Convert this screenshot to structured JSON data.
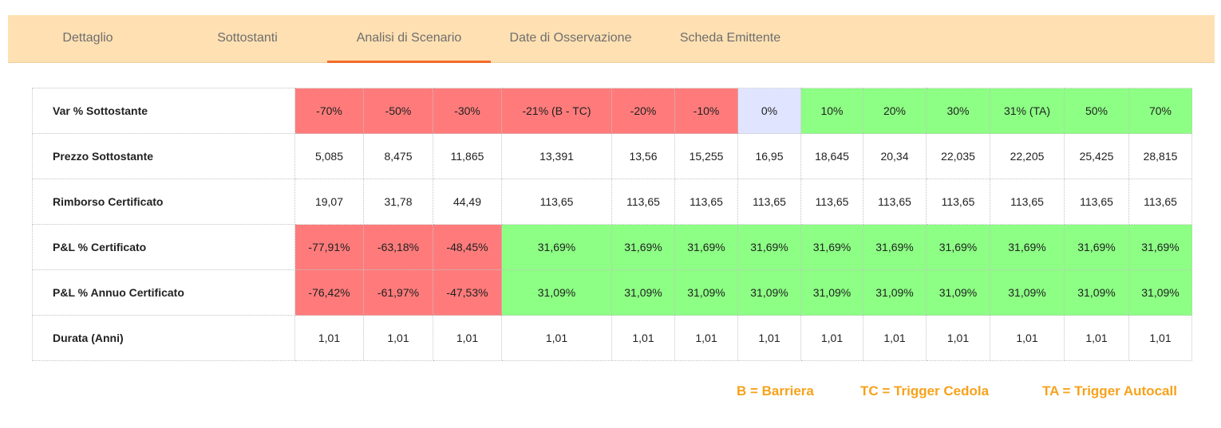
{
  "tabs": [
    {
      "label": "Dettaglio"
    },
    {
      "label": "Sottostanti"
    },
    {
      "label": "Analisi di Scenario"
    },
    {
      "label": "Date di Osservazione"
    },
    {
      "label": "Scheda Emittente"
    }
  ],
  "active_tab": "Analisi di Scenario",
  "table": {
    "rows": [
      {
        "label": "Var % Sottostante",
        "cells": [
          "-70%",
          "-50%",
          "-30%",
          "-21% (B - TC)",
          "-20%",
          "-10%",
          "0%",
          "10%",
          "20%",
          "30%",
          "31% (TA)",
          "50%",
          "70%"
        ]
      },
      {
        "label": "Prezzo Sottostante",
        "cells": [
          "5,085",
          "8,475",
          "11,865",
          "13,391",
          "13,56",
          "15,255",
          "16,95",
          "18,645",
          "20,34",
          "22,035",
          "22,205",
          "25,425",
          "28,815"
        ]
      },
      {
        "label": "Rimborso Certificato",
        "cells": [
          "19,07",
          "31,78",
          "44,49",
          "113,65",
          "113,65",
          "113,65",
          "113,65",
          "113,65",
          "113,65",
          "113,65",
          "113,65",
          "113,65",
          "113,65"
        ]
      },
      {
        "label": "P&L % Certificato",
        "cells": [
          "-77,91%",
          "-63,18%",
          "-48,45%",
          "31,69%",
          "31,69%",
          "31,69%",
          "31,69%",
          "31,69%",
          "31,69%",
          "31,69%",
          "31,69%",
          "31,69%",
          "31,69%"
        ]
      },
      {
        "label": "P&L % Annuo Certificato",
        "cells": [
          "-76,42%",
          "-61,97%",
          "-47,53%",
          "31,09%",
          "31,09%",
          "31,09%",
          "31,09%",
          "31,09%",
          "31,09%",
          "31,09%",
          "31,09%",
          "31,09%",
          "31,09%"
        ]
      },
      {
        "label": "Durata (Anni)",
        "cells": [
          "1,01",
          "1,01",
          "1,01",
          "1,01",
          "1,01",
          "1,01",
          "1,01",
          "1,01",
          "1,01",
          "1,01",
          "1,01",
          "1,01",
          "1,01"
        ]
      }
    ]
  },
  "legend": {
    "barrier": "B = Barriera",
    "coupon_trigger": "TC = Trigger Cedola",
    "autocall_trigger": "TA = Trigger Autocall"
  },
  "colors": {
    "negative": "#ff7b7b",
    "positive": "#8cff84",
    "neutral": "#e0e4ff",
    "tab_bar": "#ffe0b2",
    "tab_active_underline": "#f26b2a",
    "legend_text": "#f7a21b"
  }
}
